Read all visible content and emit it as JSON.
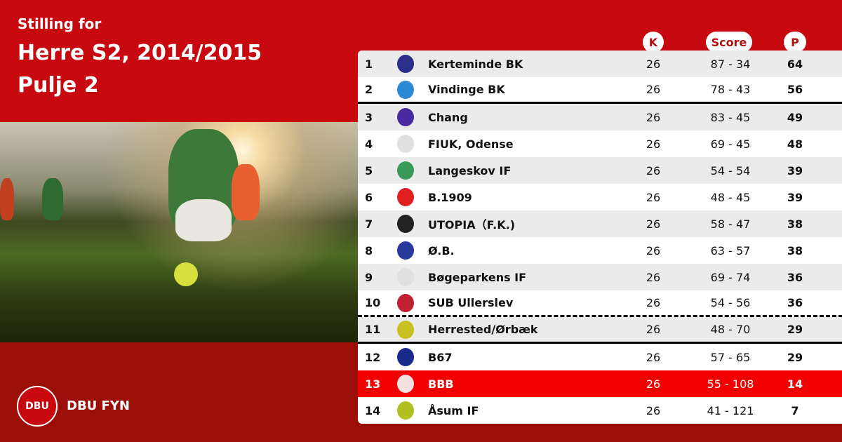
{
  "header": {
    "subtitle": "Stilling for",
    "title": "Herre S2, 2014/2015",
    "pool": "Pulje 2"
  },
  "brand": {
    "name": "DBU FYN",
    "logo_text": "DBU"
  },
  "columns": {
    "k": "K",
    "score": "Score",
    "p": "P"
  },
  "colors": {
    "top_bg": "#c8090f",
    "bottom_bg": "#9c0f08",
    "highlight": "#f00000"
  },
  "rows": [
    {
      "rank": "1",
      "team": "Kerteminde BK",
      "k": "26",
      "score": "87 - 34",
      "p": "64",
      "crest": "#2a2f8a"
    },
    {
      "rank": "2",
      "team": "Vindinge BK",
      "k": "26",
      "score": "78 - 43",
      "p": "56",
      "crest": "#2a8ad6"
    },
    {
      "rank": "3",
      "team": "Chang",
      "k": "26",
      "score": "83 - 45",
      "p": "49",
      "crest": "#4a2aa0"
    },
    {
      "rank": "4",
      "team": "FIUK, Odense",
      "k": "26",
      "score": "69 - 45",
      "p": "48",
      "crest": "#e0e0e0"
    },
    {
      "rank": "5",
      "team": "Langeskov IF",
      "k": "26",
      "score": "54 - 54",
      "p": "39",
      "crest": "#3a9a5a"
    },
    {
      "rank": "6",
      "team": "B.1909",
      "k": "26",
      "score": "48 - 45",
      "p": "39",
      "crest": "#e02020"
    },
    {
      "rank": "7",
      "team": "UTOPIA（F.K.)",
      "k": "26",
      "score": "58 - 47",
      "p": "38",
      "crest": "#222222"
    },
    {
      "rank": "8",
      "team": "Ø.B.",
      "k": "26",
      "score": "63 - 57",
      "p": "38",
      "crest": "#2a3a9a"
    },
    {
      "rank": "9",
      "team": "Bøgeparkens IF",
      "k": "26",
      "score": "69 - 74",
      "p": "36",
      "crest": "#e0e0e0"
    },
    {
      "rank": "10",
      "team": "SUB Ullerslev",
      "k": "26",
      "score": "54 - 56",
      "p": "36",
      "crest": "#c02030"
    },
    {
      "rank": "11",
      "team": "Herrested/Ørbæk",
      "k": "26",
      "score": "48 - 70",
      "p": "29",
      "crest": "#c8c020"
    },
    {
      "rank": "12",
      "team": "B67",
      "k": "26",
      "score": "57 - 65",
      "p": "29",
      "crest": "#1a2a8a"
    },
    {
      "rank": "13",
      "team": "BBB",
      "k": "26",
      "score": "55 - 108",
      "p": "14",
      "crest": "#f4e0e0"
    },
    {
      "rank": "14",
      "team": "Åsum IF",
      "k": "26",
      "score": "41 - 121",
      "p": "7",
      "crest": "#b0c020"
    }
  ]
}
